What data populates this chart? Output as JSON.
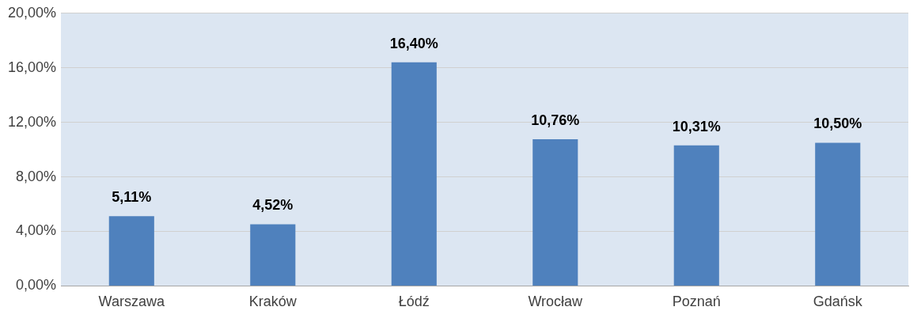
{
  "chart_data": {
    "type": "bar",
    "categories": [
      "Warszawa",
      "Kraków",
      "Łódź",
      "Wrocław",
      "Poznań",
      "Gdańsk"
    ],
    "values": [
      5.11,
      4.52,
      16.4,
      10.76,
      10.31,
      10.5
    ],
    "value_labels": [
      "5,11%",
      "4,52%",
      "16,40%",
      "10,76%",
      "10,31%",
      "10,50%"
    ],
    "color": "#4f81bd",
    "ylim": [
      0,
      20
    ],
    "yticks": [
      {
        "value": 0,
        "label": "0,00%"
      },
      {
        "value": 4,
        "label": "4,00%"
      },
      {
        "value": 8,
        "label": "8,00%"
      },
      {
        "value": 12,
        "label": "12,00%"
      },
      {
        "value": 16,
        "label": "16,00%"
      },
      {
        "value": 20,
        "label": "20,00%"
      }
    ],
    "grid": "y",
    "legend": false
  }
}
